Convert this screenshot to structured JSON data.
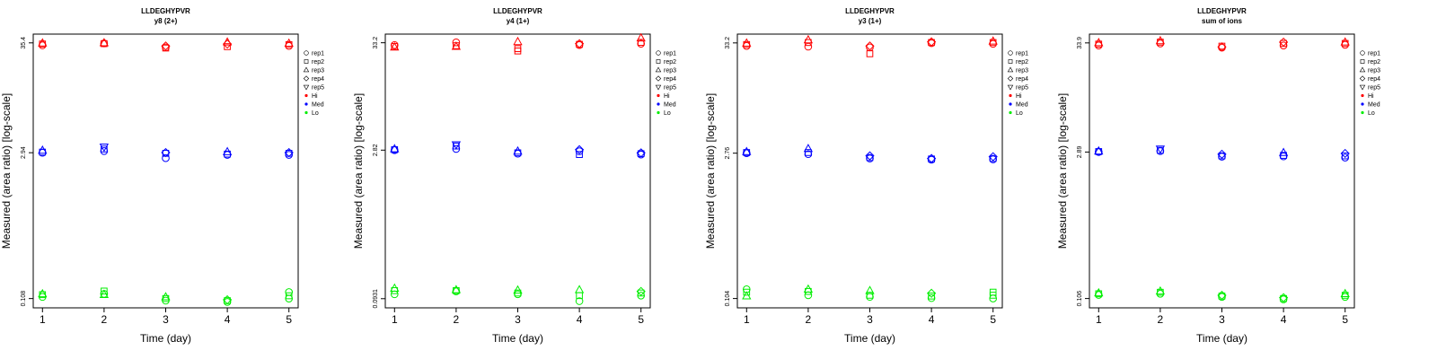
{
  "chart_data": [
    {
      "type": "scatter",
      "title": "LLDEGHYPVR",
      "subtitle": "y8 (2+)",
      "xlabel": "Time (day)",
      "ylabel": "Measured (area ratio) [log-scale]",
      "x_ticks": [
        1,
        2,
        3,
        4,
        5
      ],
      "y_scale": "log",
      "y_ticks": [
        "0.108",
        "2.94",
        "35.4"
      ],
      "legend": [
        "rep1",
        "rep2",
        "rep3",
        "rep4",
        "rep5",
        "Hi",
        "Med",
        "Lo"
      ],
      "legend_position": "right",
      "series": [
        {
          "name": "Hi",
          "color": "#ff0000",
          "points": [
            [
              1,
              33.5,
              "rep1"
            ],
            [
              1,
              34.5,
              "rep2"
            ],
            [
              1,
              35.2,
              "rep3"
            ],
            [
              2,
              35.0,
              "rep1"
            ],
            [
              2,
              34.8,
              "rep2"
            ],
            [
              2,
              35.4,
              "rep3"
            ],
            [
              3,
              32.0,
              "rep1"
            ],
            [
              3,
              31.5,
              "rep2"
            ],
            [
              3,
              33.0,
              "rep4"
            ],
            [
              4,
              32.5,
              "rep2"
            ],
            [
              4,
              36.0,
              "rep3"
            ],
            [
              4,
              34.5,
              "rep4"
            ],
            [
              5,
              33.0,
              "rep1"
            ],
            [
              5,
              34.0,
              "rep2"
            ],
            [
              5,
              35.0,
              "rep3"
            ]
          ]
        },
        {
          "name": "Med",
          "color": "#0000ff",
          "points": [
            [
              1,
              2.94,
              "rep1"
            ],
            [
              1,
              2.98,
              "rep2"
            ],
            [
              1,
              3.1,
              "rep3"
            ],
            [
              2,
              3.05,
              "rep1"
            ],
            [
              2,
              3.2,
              "rep2"
            ],
            [
              2,
              3.35,
              "rep5"
            ],
            [
              3,
              2.6,
              "rep1"
            ],
            [
              3,
              2.9,
              "rep2"
            ],
            [
              3,
              2.95,
              "rep4"
            ],
            [
              4,
              2.8,
              "rep1"
            ],
            [
              4,
              2.85,
              "rep2"
            ],
            [
              4,
              3.0,
              "rep3"
            ],
            [
              5,
              2.8,
              "rep1"
            ],
            [
              5,
              2.9,
              "rep2"
            ],
            [
              5,
              2.95,
              "rep4"
            ]
          ]
        },
        {
          "name": "Lo",
          "color": "#00ee00",
          "points": [
            [
              1,
              0.112,
              "rep1"
            ],
            [
              1,
              0.118,
              "rep2"
            ],
            [
              1,
              0.12,
              "rep3"
            ],
            [
              2,
              0.12,
              "rep1"
            ],
            [
              2,
              0.128,
              "rep2"
            ],
            [
              2,
              0.118,
              "rep3"
            ],
            [
              3,
              0.103,
              "rep1"
            ],
            [
              3,
              0.108,
              "rep2"
            ],
            [
              3,
              0.112,
              "rep3"
            ],
            [
              4,
              0.1,
              "rep1"
            ],
            [
              4,
              0.103,
              "rep2"
            ],
            [
              4,
              0.105,
              "rep4"
            ],
            [
              5,
              0.108,
              "rep1"
            ],
            [
              5,
              0.115,
              "rep2"
            ],
            [
              5,
              0.125,
              "rep1"
            ]
          ]
        }
      ]
    },
    {
      "type": "scatter",
      "title": "LLDEGHYPVR",
      "subtitle": "y4 (1+)",
      "xlabel": "Time (day)",
      "ylabel": "Measured (area ratio) [log-scale]",
      "x_ticks": [
        1,
        2,
        3,
        4,
        5
      ],
      "y_scale": "log",
      "y_ticks": [
        "0.0931",
        "2.82",
        "33.2"
      ],
      "legend": [
        "rep1",
        "rep2",
        "rep3",
        "rep4",
        "rep5",
        "Hi",
        "Med",
        "Lo"
      ],
      "legend_position": "right",
      "series": [
        {
          "name": "Hi",
          "color": "#ff0000",
          "points": [
            [
              1,
              31.5,
              "rep1"
            ],
            [
              1,
              30.5,
              "rep2"
            ],
            [
              1,
              30.0,
              "rep3"
            ],
            [
              2,
              33.5,
              "rep1"
            ],
            [
              2,
              31.0,
              "rep2"
            ],
            [
              2,
              30.5,
              "rep3"
            ],
            [
              3,
              29.0,
              "rep2"
            ],
            [
              3,
              27.5,
              "rep2"
            ],
            [
              3,
              34.0,
              "rep3"
            ],
            [
              4,
              31.5,
              "rep1"
            ],
            [
              4,
              32.0,
              "rep2"
            ],
            [
              4,
              32.5,
              "rep4"
            ],
            [
              5,
              32.5,
              "rep1"
            ],
            [
              5,
              33.5,
              "rep2"
            ],
            [
              5,
              37.0,
              "rep3"
            ]
          ]
        },
        {
          "name": "Med",
          "color": "#0000ff",
          "points": [
            [
              1,
              2.82,
              "rep1"
            ],
            [
              1,
              2.85,
              "rep2"
            ],
            [
              1,
              2.9,
              "rep3"
            ],
            [
              2,
              2.9,
              "rep1"
            ],
            [
              2,
              3.1,
              "rep2"
            ],
            [
              2,
              3.2,
              "rep5"
            ],
            [
              3,
              2.6,
              "rep1"
            ],
            [
              3,
              2.65,
              "rep2"
            ],
            [
              3,
              2.75,
              "rep3"
            ],
            [
              4,
              2.55,
              "rep2"
            ],
            [
              4,
              2.75,
              "rep1"
            ],
            [
              4,
              2.85,
              "rep4"
            ],
            [
              5,
              2.55,
              "rep1"
            ],
            [
              5,
              2.6,
              "rep2"
            ],
            [
              5,
              2.65,
              "rep4"
            ]
          ]
        },
        {
          "name": "Lo",
          "color": "#00ee00",
          "points": [
            [
              1,
              0.103,
              "rep1"
            ],
            [
              1,
              0.112,
              "rep2"
            ],
            [
              1,
              0.118,
              "rep3"
            ],
            [
              2,
              0.11,
              "rep1"
            ],
            [
              2,
              0.112,
              "rep2"
            ],
            [
              2,
              0.114,
              "rep3"
            ],
            [
              3,
              0.103,
              "rep1"
            ],
            [
              3,
              0.106,
              "rep2"
            ],
            [
              3,
              0.113,
              "rep3"
            ],
            [
              4,
              0.088,
              "rep1"
            ],
            [
              4,
              0.1,
              "rep2"
            ],
            [
              4,
              0.114,
              "rep3"
            ],
            [
              5,
              0.1,
              "rep1"
            ],
            [
              5,
              0.106,
              "rep2"
            ],
            [
              5,
              0.11,
              "rep4"
            ]
          ]
        }
      ]
    },
    {
      "type": "scatter",
      "title": "LLDEGHYPVR",
      "subtitle": "y3 (1+)",
      "xlabel": "Time (day)",
      "ylabel": "Measured (area ratio) [log-scale]",
      "x_ticks": [
        1,
        2,
        3,
        4,
        5
      ],
      "y_scale": "log",
      "y_ticks": [
        "0.104",
        "2.76",
        "33.2"
      ],
      "legend": [
        "rep1",
        "rep2",
        "rep3",
        "rep4",
        "rep5",
        "Hi",
        "Med",
        "Lo"
      ],
      "legend_position": "right",
      "series": [
        {
          "name": "Hi",
          "color": "#ff0000",
          "points": [
            [
              1,
              31.0,
              "rep1"
            ],
            [
              1,
              32.0,
              "rep2"
            ],
            [
              1,
              33.0,
              "rep3"
            ],
            [
              2,
              30.5,
              "rep1"
            ],
            [
              2,
              33.5,
              "rep2"
            ],
            [
              2,
              35.5,
              "rep3"
            ],
            [
              3,
              26.0,
              "rep2"
            ],
            [
              3,
              30.0,
              "rep1"
            ],
            [
              3,
              31.0,
              "rep4"
            ],
            [
              4,
              33.0,
              "rep1"
            ],
            [
              4,
              33.5,
              "rep2"
            ],
            [
              4,
              34.0,
              "rep4"
            ],
            [
              5,
              32.5,
              "rep1"
            ],
            [
              5,
              33.5,
              "rep2"
            ],
            [
              5,
              34.5,
              "rep3"
            ]
          ]
        },
        {
          "name": "Med",
          "color": "#0000ff",
          "points": [
            [
              1,
              2.76,
              "rep1"
            ],
            [
              1,
              2.8,
              "rep2"
            ],
            [
              1,
              2.85,
              "rep3"
            ],
            [
              2,
              2.7,
              "rep1"
            ],
            [
              2,
              2.8,
              "rep2"
            ],
            [
              2,
              3.05,
              "rep3"
            ],
            [
              3,
              2.45,
              "rep1"
            ],
            [
              3,
              2.5,
              "rep2"
            ],
            [
              3,
              2.6,
              "rep4"
            ],
            [
              4,
              2.38,
              "rep1"
            ],
            [
              4,
              2.42,
              "rep2"
            ],
            [
              4,
              2.45,
              "rep4"
            ],
            [
              5,
              2.4,
              "rep1"
            ],
            [
              5,
              2.45,
              "rep2"
            ],
            [
              5,
              2.55,
              "rep4"
            ]
          ]
        },
        {
          "name": "Lo",
          "color": "#00ee00",
          "points": [
            [
              1,
              0.128,
              "rep1"
            ],
            [
              1,
              0.12,
              "rep2"
            ],
            [
              1,
              0.11,
              "rep3"
            ],
            [
              2,
              0.112,
              "rep1"
            ],
            [
              2,
              0.122,
              "rep2"
            ],
            [
              2,
              0.128,
              "rep3"
            ],
            [
              3,
              0.108,
              "rep1"
            ],
            [
              3,
              0.112,
              "rep2"
            ],
            [
              3,
              0.124,
              "rep3"
            ],
            [
              4,
              0.105,
              "rep1"
            ],
            [
              4,
              0.11,
              "rep2"
            ],
            [
              4,
              0.117,
              "rep4"
            ],
            [
              5,
              0.104,
              "rep1"
            ],
            [
              5,
              0.112,
              "rep2"
            ],
            [
              5,
              0.12,
              "rep2"
            ]
          ]
        }
      ]
    },
    {
      "type": "scatter",
      "title": "LLDEGHYPVR",
      "subtitle": "sum of ions",
      "xlabel": "Time (day)",
      "ylabel": "Measured (area ratio) [log-scale]",
      "x_ticks": [
        1,
        2,
        3,
        4,
        5
      ],
      "y_scale": "log",
      "y_ticks": [
        "0.106",
        "2.89",
        "33.9"
      ],
      "legend": [
        "rep1",
        "rep2",
        "rep3",
        "rep4",
        "rep5",
        "Hi",
        "Med",
        "Lo"
      ],
      "legend_position": "right",
      "series": [
        {
          "name": "Hi",
          "color": "#ff0000",
          "points": [
            [
              1,
              32.0,
              "rep1"
            ],
            [
              1,
              33.0,
              "rep2"
            ],
            [
              1,
              34.0,
              "rep3"
            ],
            [
              2,
              33.5,
              "rep1"
            ],
            [
              2,
              34.5,
              "rep2"
            ],
            [
              2,
              35.5,
              "rep3"
            ],
            [
              3,
              30.5,
              "rep1"
            ],
            [
              3,
              31.5,
              "rep2"
            ],
            [
              3,
              31.0,
              "rep4"
            ],
            [
              4,
              32.0,
              "rep1"
            ],
            [
              4,
              33.5,
              "rep2"
            ],
            [
              4,
              34.5,
              "rep4"
            ],
            [
              5,
              32.5,
              "rep1"
            ],
            [
              5,
              33.5,
              "rep2"
            ],
            [
              5,
              34.5,
              "rep3"
            ]
          ]
        },
        {
          "name": "Med",
          "color": "#0000ff",
          "points": [
            [
              1,
              2.89,
              "rep1"
            ],
            [
              1,
              2.92,
              "rep2"
            ],
            [
              1,
              2.95,
              "rep3"
            ],
            [
              2,
              2.95,
              "rep1"
            ],
            [
              2,
              3.0,
              "rep2"
            ],
            [
              2,
              3.1,
              "rep5"
            ],
            [
              3,
              2.6,
              "rep1"
            ],
            [
              3,
              2.65,
              "rep2"
            ],
            [
              3,
              2.75,
              "rep4"
            ],
            [
              4,
              2.62,
              "rep1"
            ],
            [
              4,
              2.68,
              "rep2"
            ],
            [
              4,
              2.85,
              "rep3"
            ],
            [
              5,
              2.55,
              "rep1"
            ],
            [
              5,
              2.65,
              "rep2"
            ],
            [
              5,
              2.8,
              "rep4"
            ]
          ]
        },
        {
          "name": "Lo",
          "color": "#00ee00",
          "points": [
            [
              1,
              0.115,
              "rep1"
            ],
            [
              1,
              0.118,
              "rep2"
            ],
            [
              1,
              0.12,
              "rep3"
            ],
            [
              2,
              0.118,
              "rep1"
            ],
            [
              2,
              0.122,
              "rep2"
            ],
            [
              2,
              0.125,
              "rep3"
            ],
            [
              3,
              0.11,
              "rep1"
            ],
            [
              3,
              0.112,
              "rep2"
            ],
            [
              3,
              0.114,
              "rep4"
            ],
            [
              4,
              0.104,
              "rep1"
            ],
            [
              4,
              0.106,
              "rep2"
            ],
            [
              4,
              0.108,
              "rep4"
            ],
            [
              5,
              0.11,
              "rep1"
            ],
            [
              5,
              0.114,
              "rep2"
            ],
            [
              5,
              0.118,
              "rep3"
            ]
          ]
        }
      ]
    }
  ]
}
